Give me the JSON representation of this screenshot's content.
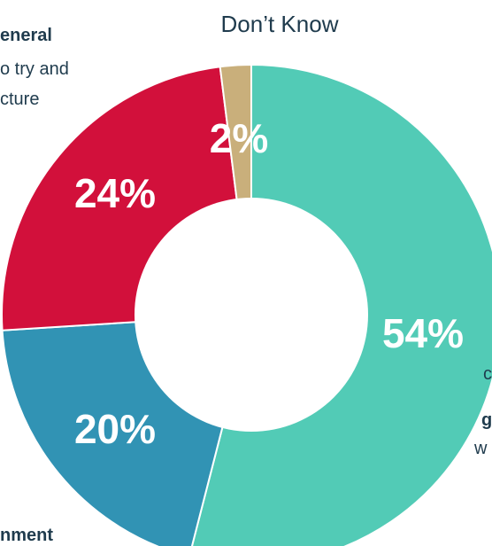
{
  "chart_data": {
    "type": "pie",
    "categories": [
      "",
      "",
      "",
      "Don’t Know"
    ],
    "values": [
      54,
      20,
      24,
      2
    ],
    "value_labels": [
      "54%",
      "20%",
      "24%",
      "2%"
    ],
    "colors": [
      "#52cbb6",
      "#3193b4",
      "#d2103b",
      "#c9af7b"
    ],
    "donut": true
  },
  "labels": {
    "dont_know": "Don’t Know",
    "general": "eneral",
    "try_and": "o try and",
    "ture": "cture",
    "c": "c",
    "g": "g",
    "w": "w",
    "ment": "nment"
  }
}
